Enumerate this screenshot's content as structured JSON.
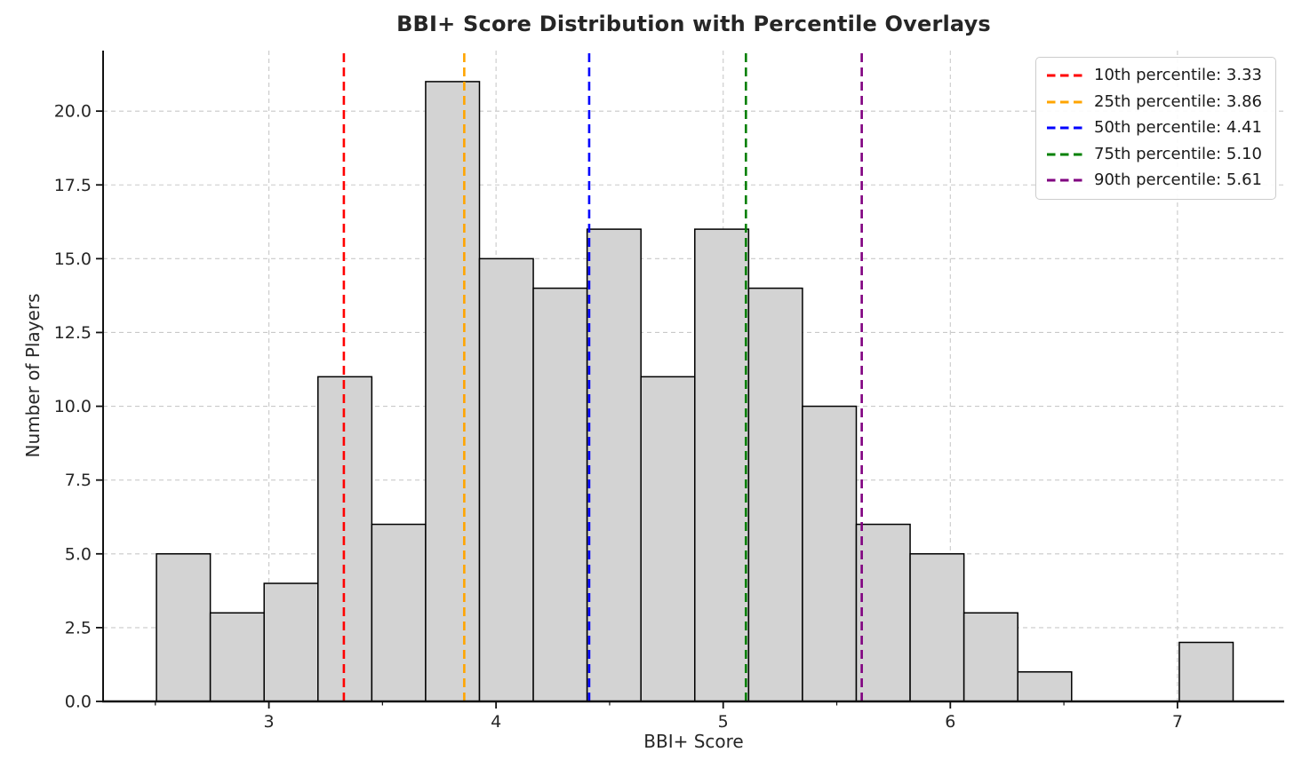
{
  "chart_data": {
    "type": "bar",
    "subtype": "histogram",
    "title": "BBI+ Score Distribution with Percentile Overlays",
    "xlabel": "BBI+ Score",
    "ylabel": "Number of Players",
    "bin_start": 2.505,
    "bin_width": 0.237,
    "counts": [
      5,
      3,
      4,
      11,
      6,
      21,
      15,
      14,
      16,
      11,
      16,
      14,
      10,
      6,
      5,
      3,
      1,
      0,
      0,
      2
    ],
    "total_players": 163,
    "xlim": [
      2.27,
      7.47
    ],
    "ylim": [
      0,
      22.05
    ],
    "x_ticks": {
      "values": [
        3,
        4,
        5,
        6,
        7
      ],
      "labels": [
        "3",
        "4",
        "5",
        "6",
        "7"
      ]
    },
    "x_minor_ticks": [
      2.5,
      3.5,
      4.5,
      5.5,
      6.5
    ],
    "y_ticks": {
      "values": [
        0,
        2.5,
        5,
        7.5,
        10,
        12.5,
        15,
        17.5,
        20
      ],
      "labels": [
        "0.0",
        "2.5",
        "5.0",
        "7.5",
        "10.0",
        "12.5",
        "15.0",
        "17.5",
        "20.0"
      ]
    },
    "grid": true,
    "legend_position": "upper right",
    "percentiles": [
      {
        "percentile": "10th",
        "value": 3.33,
        "label": "10th percentile: 3.33",
        "color": "#ff0000"
      },
      {
        "percentile": "25th",
        "value": 3.86,
        "label": "25th percentile: 3.86",
        "color": "#ffa500"
      },
      {
        "percentile": "50th",
        "value": 4.41,
        "label": "50th percentile: 4.41",
        "color": "#0000ff"
      },
      {
        "percentile": "75th",
        "value": 5.1,
        "label": "75th percentile: 5.10",
        "color": "#008000"
      },
      {
        "percentile": "90th",
        "value": 5.61,
        "label": "90th percentile: 5.61",
        "color": "#800080"
      }
    ],
    "colors": {
      "bar_fill": "#d3d3d3",
      "bar_edge": "#000000",
      "grid": "#c9c9c9",
      "spine": "#111111",
      "tick_text": "#262626",
      "legend_border": "#cccccc"
    }
  }
}
